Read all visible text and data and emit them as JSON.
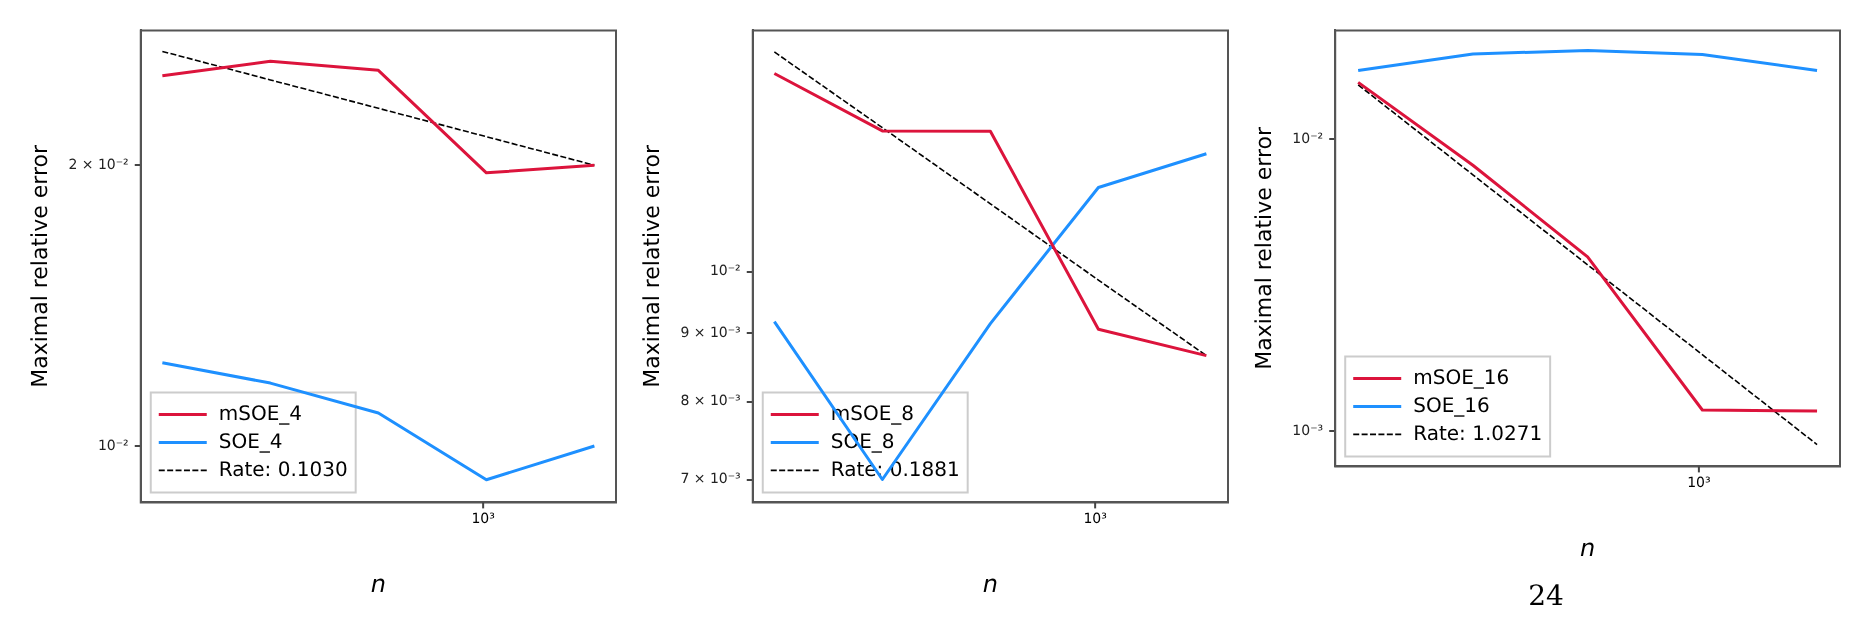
{
  "chart_data": [
    {
      "type": "line",
      "xlabel": "n",
      "ylabel": "Maximal relative error",
      "log": "y",
      "grid": false,
      "legend": "bottom left",
      "categories": [
        null,
        null,
        null,
        null,
        null
      ],
      "ylim": [
        0.0087,
        0.0279
      ],
      "yticks": [
        {
          "value": 0.01,
          "label": "10⁻²"
        },
        {
          "value": 0.02,
          "label": "2 × 10⁻²"
        }
      ],
      "annotations": [
        "10³"
      ],
      "series": [
        {
          "name": "mSOE_4",
          "color": "#dc143c",
          "values": [
            0.02494,
            0.02585,
            0.02528,
            0.01963,
            0.02
          ]
        },
        {
          "name": "SOE_4",
          "color": "#1e90ff",
          "values": [
            0.01228,
            0.01168,
            0.01085,
            0.0092,
            0.01
          ]
        },
        {
          "name": "Rate: 0.1030",
          "color": "#000000",
          "line_style": "dashed",
          "values": [
            0.02649,
            0.02469,
            0.02302,
            0.02146,
            0.02
          ]
        }
      ]
    },
    {
      "type": "line",
      "xlabel": "n",
      "ylabel": "Maximal relative error",
      "log": "y",
      "grid": false,
      "legend": "bottom left",
      "categories": [
        null,
        null,
        null,
        null,
        null
      ],
      "ylim": [
        0.00673,
        0.01514
      ],
      "yticks": [
        {
          "value": 0.007,
          "label": "7 × 10⁻³"
        },
        {
          "value": 0.008,
          "label": "8 × 10⁻³"
        },
        {
          "value": 0.009,
          "label": "9 × 10⁻³"
        },
        {
          "value": 0.01,
          "label": "10⁻²"
        }
      ],
      "annotations": [
        "10³"
      ],
      "series": [
        {
          "name": "mSOE_8",
          "color": "#dc143c",
          "values": [
            0.01406,
            0.01274,
            0.01273,
            0.00906,
            0.00866
          ]
        },
        {
          "name": "SOE_8",
          "color": "#1e90ff",
          "values": [
            0.00918,
            0.007,
            0.00915,
            0.01156,
            0.01225
          ]
        },
        {
          "name": "Rate: 0.1881",
          "color": "#000000",
          "line_style": "dashed",
          "values": [
            0.01459,
            0.01281,
            0.01124,
            0.00986,
            0.00866
          ]
        }
      ]
    },
    {
      "type": "line",
      "xlabel": "n",
      "ylabel": "Maximal relative error",
      "log": "y",
      "grid": false,
      "legend": "bottom left",
      "categories": [
        null,
        null,
        null,
        null,
        null
      ],
      "ylim": [
        0.000756,
        0.0236
      ],
      "yticks": [
        {
          "value": 0.001,
          "label": "10⁻³"
        },
        {
          "value": 0.01,
          "label": "10⁻²"
        }
      ],
      "annotations": [
        "10³",
        "24"
      ],
      "series": [
        {
          "name": "mSOE_16",
          "color": "#dc143c",
          "values": [
            0.01566,
            0.00814,
            0.00395,
            0.00118,
            0.00117
          ]
        },
        {
          "name": "SOE_16",
          "color": "#1e90ff",
          "values": [
            0.01719,
            0.01959,
            0.02015,
            0.0195,
            0.0172
          ]
        },
        {
          "name": "Rate: 1.0271",
          "color": "#000000",
          "line_style": "dashed",
          "values": [
            0.01536,
            0.00755,
            0.00371,
            0.001826,
            0.000898
          ]
        }
      ]
    }
  ]
}
